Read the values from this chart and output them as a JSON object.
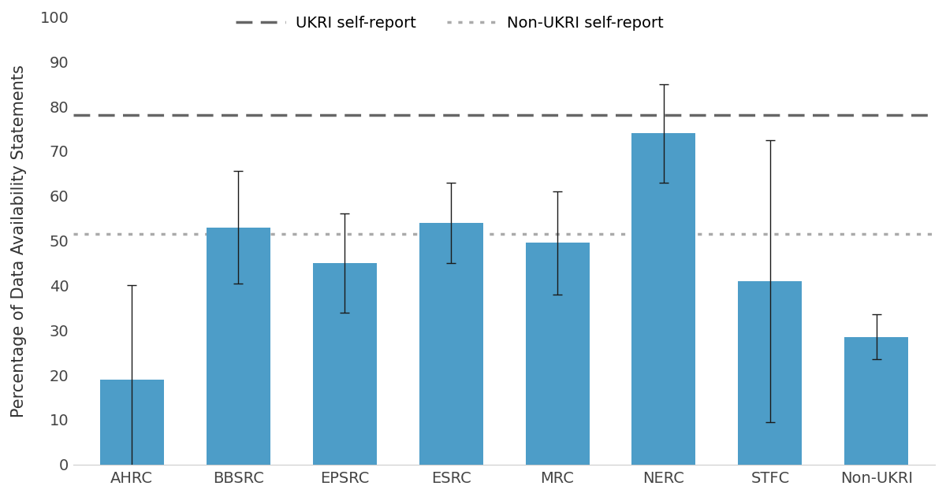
{
  "categories": [
    "AHRC",
    "BBSRC",
    "EPSRC",
    "ESRC",
    "MRC",
    "NERC",
    "STFC",
    "Non-UKRI"
  ],
  "values": [
    19,
    53,
    45,
    54,
    49.5,
    74,
    41,
    28.5
  ],
  "errors": [
    21,
    12.5,
    11,
    9,
    11.5,
    11,
    31.5,
    5
  ],
  "bar_color": "#4D9DC8",
  "error_color": "#1a1a1a",
  "ukri_self_report": 78,
  "non_ukri_self_report": 51.5,
  "ukri_line_color": "#666666",
  "non_ukri_line_color": "#aaaaaa",
  "ylabel": "Percentage of Data Availability Statements",
  "ylim": [
    0,
    100
  ],
  "yticks": [
    0,
    10,
    20,
    30,
    40,
    50,
    60,
    70,
    80,
    90,
    100
  ],
  "legend_ukri": "UKRI self-report",
  "legend_non_ukri": "Non-UKRI self-report",
  "background_color": "#ffffff",
  "label_fontsize": 15,
  "tick_fontsize": 14,
  "legend_fontsize": 14,
  "bar_width": 0.6
}
